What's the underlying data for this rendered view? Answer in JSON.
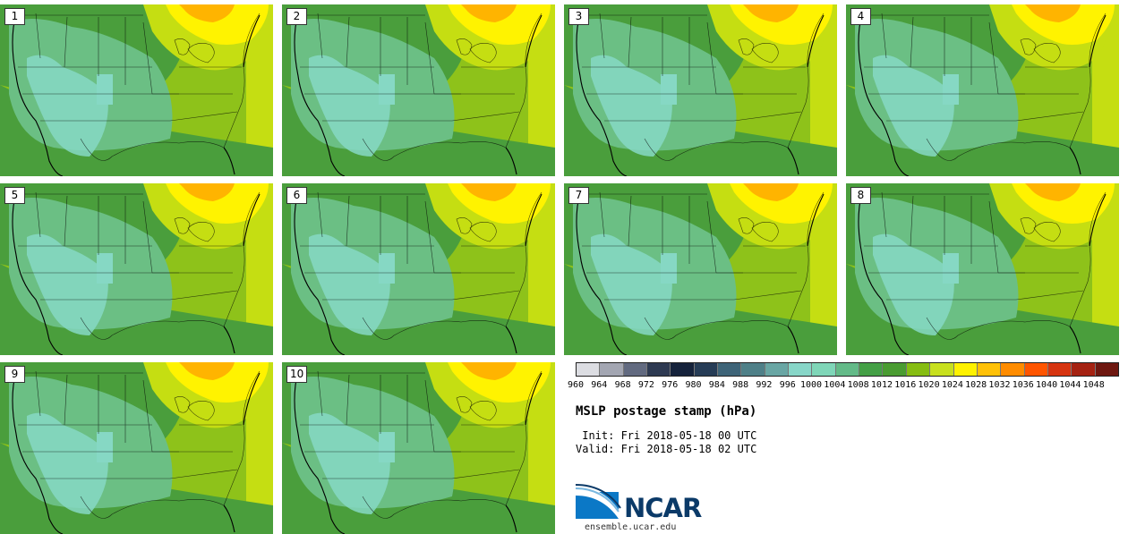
{
  "panels": [
    {
      "number": "1"
    },
    {
      "number": "2"
    },
    {
      "number": "3"
    },
    {
      "number": "4"
    },
    {
      "number": "5"
    },
    {
      "number": "6"
    },
    {
      "number": "7"
    },
    {
      "number": "8"
    },
    {
      "number": "9"
    },
    {
      "number": "10"
    }
  ],
  "colorbar": {
    "labels": [
      "960",
      "964",
      "968",
      "972",
      "976",
      "980",
      "984",
      "988",
      "992",
      "996",
      "1000",
      "1004",
      "1008",
      "1012",
      "1016",
      "1020",
      "1024",
      "1028",
      "1032",
      "1036",
      "1040",
      "1044",
      "1048"
    ],
    "colors": [
      "#dcdde2",
      "#a3a6b2",
      "#626a80",
      "#2e3a52",
      "#15223b",
      "#263c56",
      "#3e6478",
      "#4f8088",
      "#69a6a4",
      "#87d6c8",
      "#7fd6b8",
      "#63ba88",
      "#44a046",
      "#4a9c32",
      "#86bd12",
      "#c8e01e",
      "#fff200",
      "#ffc107",
      "#ff8c00",
      "#ff5500",
      "#d63410",
      "#a52212",
      "#6e1710"
    ]
  },
  "title": "MSLP postage stamp (hPa)",
  "init_line": " Init: Fri 2018-05-18 00 UTC",
  "valid_line": "Valid: Fri 2018-05-18 02 UTC",
  "logo": {
    "text": "NCAR",
    "url": "ensemble.ucar.edu"
  },
  "map_colors": {
    "1008": "#6bbf84",
    "1004": "#86d8c4",
    "1012": "#4a9e3c",
    "1016": "#8ec21a",
    "1020": "#c5de12",
    "1024": "#fff300",
    "1028": "#ffb400"
  }
}
